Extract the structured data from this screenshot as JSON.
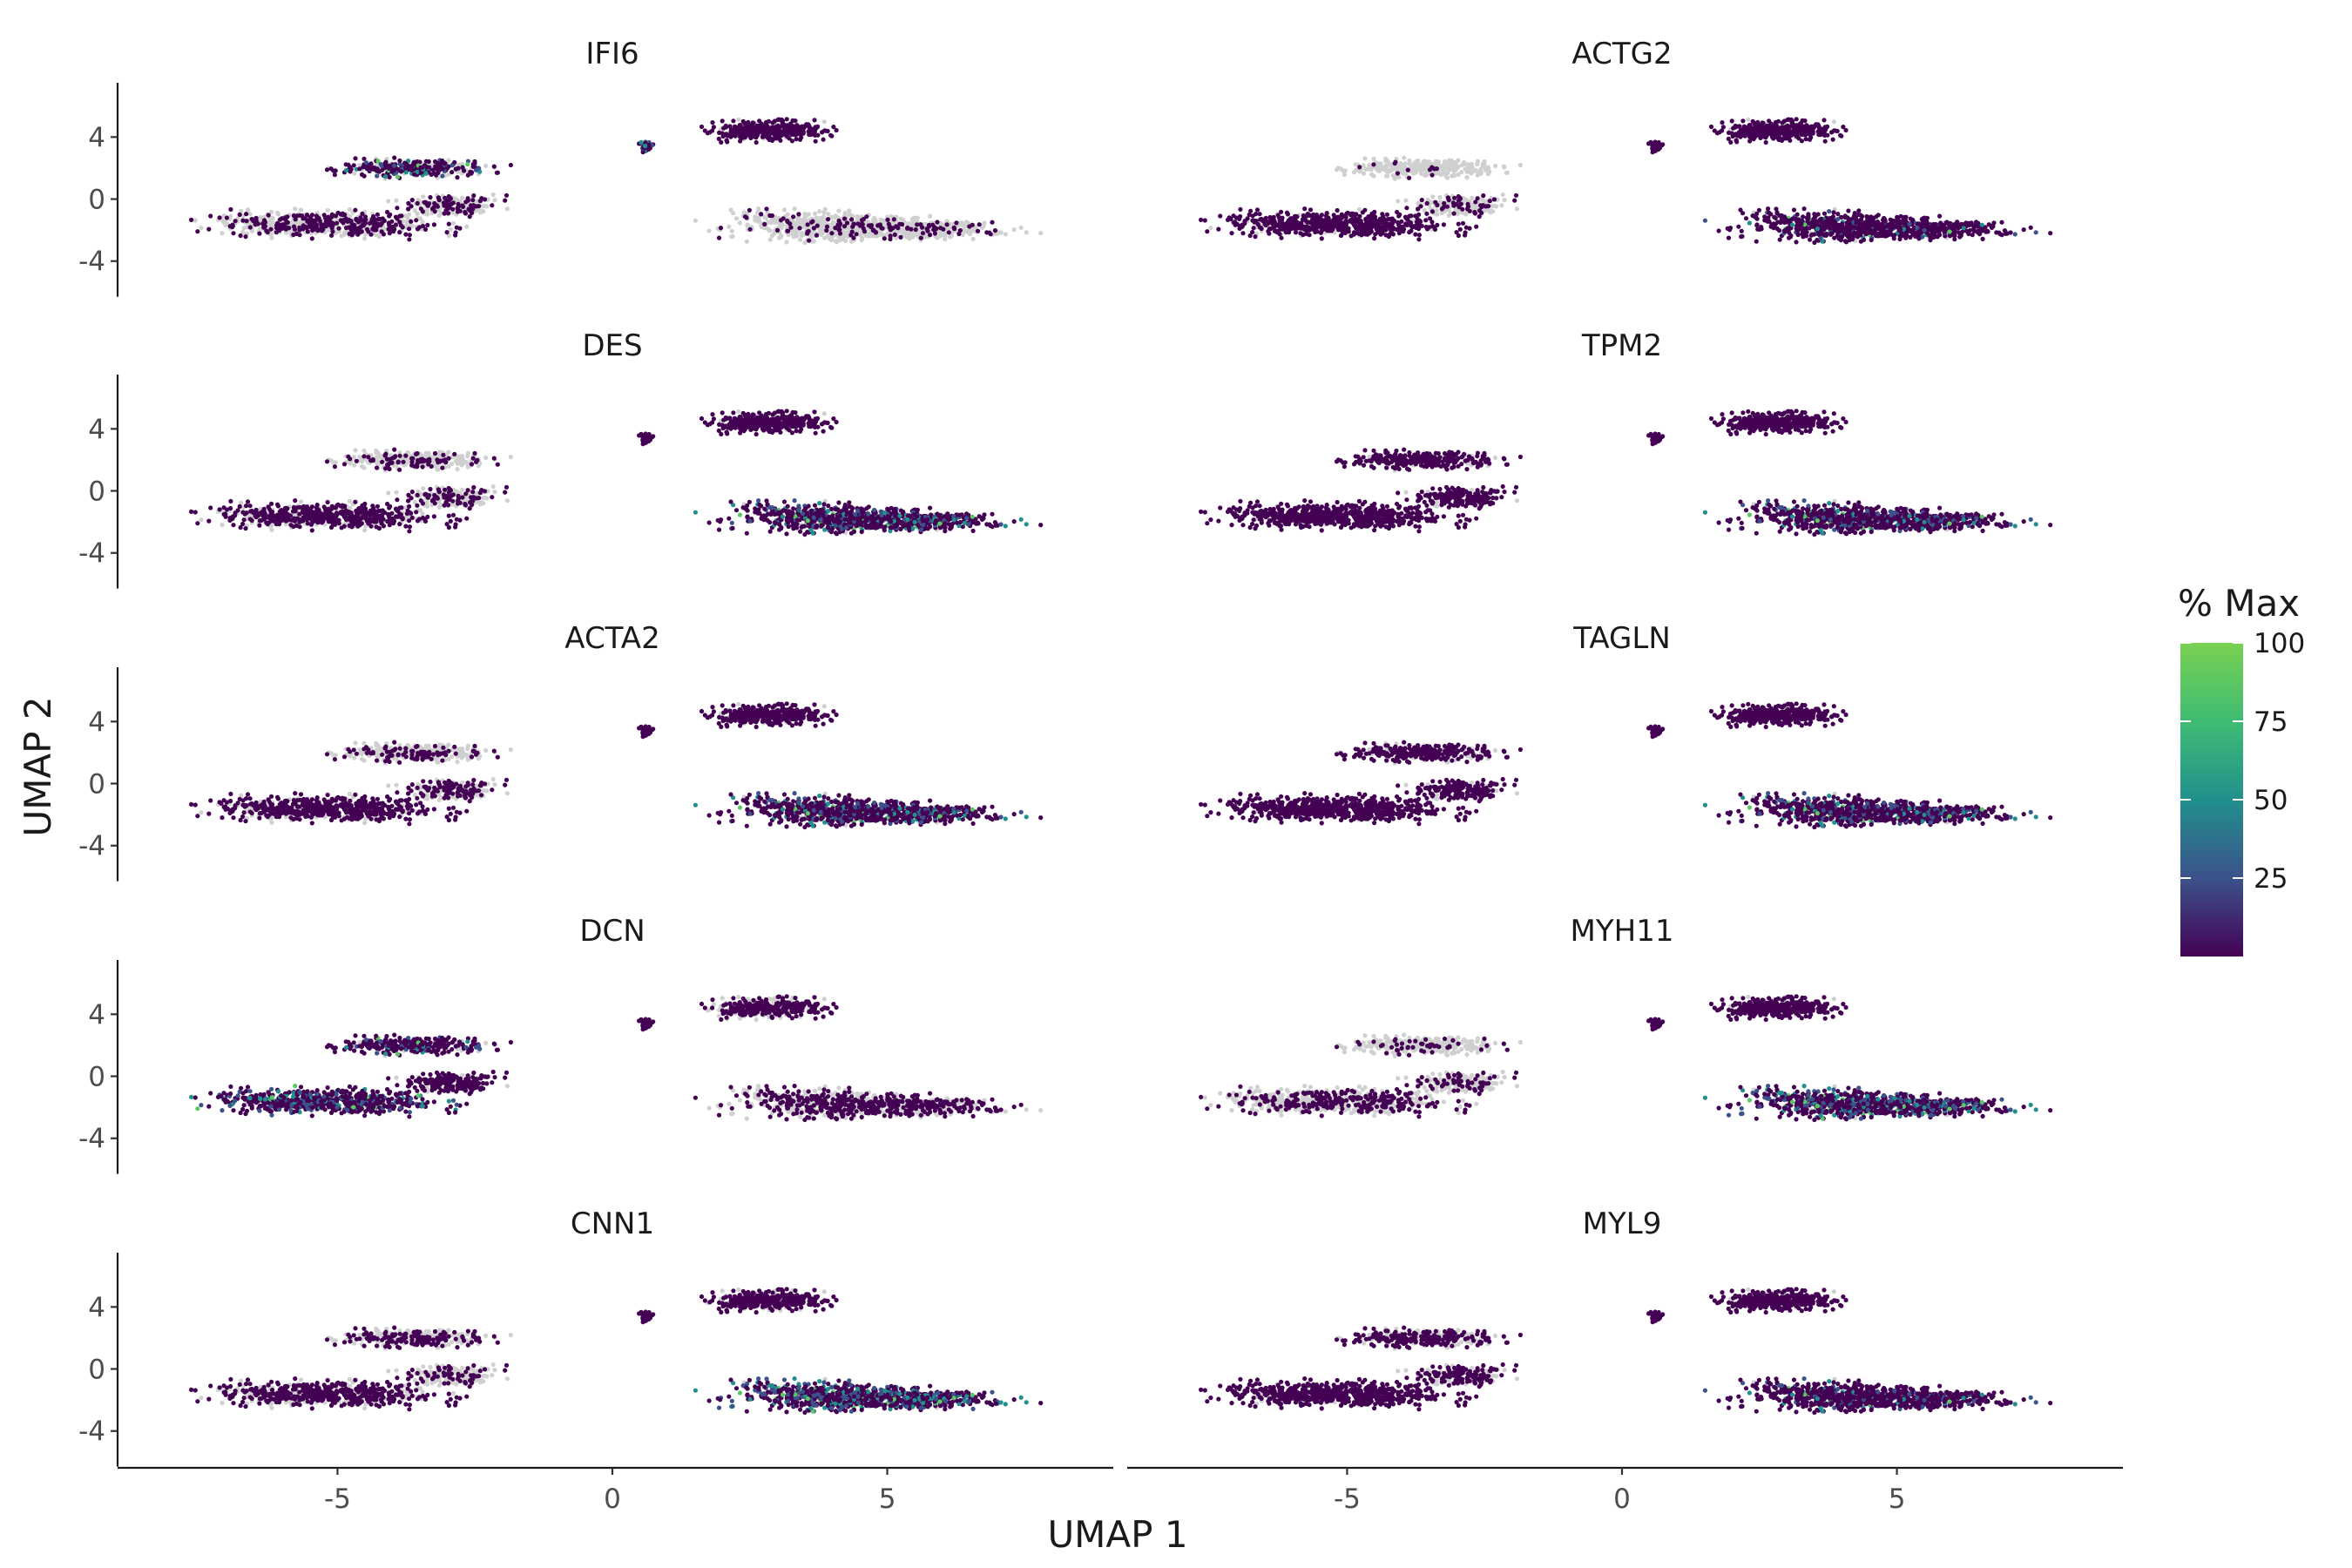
{
  "chart_data": {
    "type": "scatter",
    "kind": "umap-feature-plot",
    "xlabel": "UMAP 1",
    "ylabel": "UMAP 2",
    "x_ticks": [
      -5,
      0,
      5
    ],
    "y_ticks": [
      4,
      0,
      -4
    ],
    "xlim": [
      -9.0,
      9.0
    ],
    "ylim": [
      -5.7,
      7.5
    ],
    "colors": {
      "no_expression": "#d0d0d0",
      "scale": [
        "#440154",
        "#3b528b",
        "#21908d",
        "#5dc863",
        "#7ad151"
      ]
    },
    "legend": {
      "title": "% Max",
      "position": "right",
      "min": 0,
      "max": 100,
      "ticks": [
        100,
        75,
        50,
        25
      ]
    },
    "panels": [
      {
        "gene": "IFI6"
      },
      {
        "gene": "ACTG2"
      },
      {
        "gene": "DES"
      },
      {
        "gene": "TPM2"
      },
      {
        "gene": "ACTA2"
      },
      {
        "gene": "TAGLN"
      },
      {
        "gene": "DCN"
      },
      {
        "gene": "MYH11"
      },
      {
        "gene": "CNN1"
      },
      {
        "gene": "MYL9"
      }
    ]
  }
}
